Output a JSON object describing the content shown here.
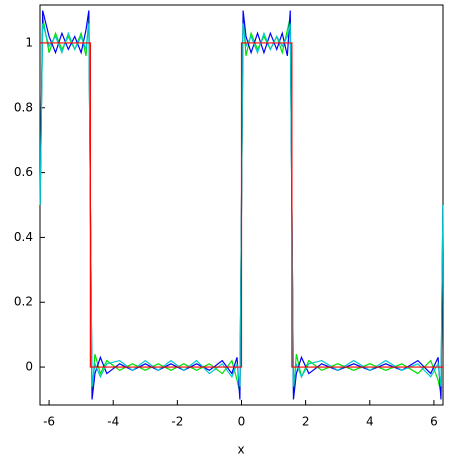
{
  "chart_data": {
    "type": "line",
    "x_label": "x",
    "xlim": [
      -6.2832,
      6.2832
    ],
    "ylim": [
      -0.117,
      1.117
    ],
    "xticks": [
      -6,
      -4,
      -2,
      0,
      2,
      4,
      6
    ],
    "yticks": [
      0,
      0.2,
      0.4,
      0.6,
      0.8,
      1
    ],
    "x": [
      -6.28,
      -6.2,
      -6.0,
      -5.8,
      -5.6,
      -5.4,
      -5.2,
      -5.0,
      -4.85,
      -4.76,
      -4.712,
      -4.66,
      -4.57,
      -4.4,
      -4.2,
      -3.8,
      -3.4,
      -3.0,
      -2.6,
      -2.2,
      -1.8,
      -1.4,
      -1.0,
      -0.6,
      -0.3,
      -0.14,
      -0.05,
      0,
      0.05,
      0.14,
      0.3,
      0.5,
      0.7,
      0.9,
      1.1,
      1.27,
      1.43,
      1.52,
      1.571,
      1.62,
      1.71,
      1.87,
      2.1,
      2.5,
      3.0,
      3.5,
      4.0,
      4.5,
      5.0,
      5.5,
      5.9,
      6.13,
      6.22,
      6.28
    ],
    "series": [
      {
        "color": "#00e000",
        "values": [
          0.5,
          1.08,
          0.97,
          1.03,
          0.98,
          1.02,
          0.98,
          1.03,
          0.96,
          1.08,
          0.5,
          -0.08,
          0.04,
          -0.02,
          0.02,
          -0.01,
          0.01,
          -0.01,
          0.01,
          -0.01,
          0.01,
          -0.01,
          0.01,
          -0.02,
          0.02,
          -0.04,
          -0.08,
          0.5,
          1.08,
          0.96,
          1.03,
          0.98,
          1.02,
          0.98,
          1.02,
          0.97,
          1.04,
          1.08,
          0.5,
          -0.08,
          0.04,
          -0.03,
          0.02,
          -0.01,
          0.01,
          -0.01,
          0.01,
          -0.01,
          0.01,
          -0.02,
          0.02,
          -0.04,
          -0.08,
          0.5
        ]
      },
      {
        "color": "#0000ff",
        "values": [
          0.5,
          1.1,
          1.02,
          0.97,
          1.03,
          0.98,
          1.02,
          0.97,
          1.04,
          1.1,
          0.5,
          -0.1,
          -0.02,
          0.03,
          -0.02,
          0.01,
          -0.01,
          0.01,
          -0.01,
          0.01,
          -0.01,
          0.01,
          -0.01,
          0.02,
          -0.02,
          0.03,
          -0.1,
          0.5,
          1.1,
          1.02,
          0.97,
          1.03,
          0.97,
          1.03,
          0.98,
          1.03,
          0.96,
          1.1,
          0.5,
          -0.1,
          -0.02,
          0.03,
          -0.02,
          0.01,
          -0.01,
          0.01,
          -0.01,
          0.01,
          -0.01,
          0.02,
          -0.02,
          0.03,
          -0.1,
          0.5
        ]
      },
      {
        "color": "#00c8c8",
        "values": [
          0.5,
          1.06,
          0.99,
          1.02,
          0.97,
          1.03,
          0.98,
          1.02,
          0.98,
          1.06,
          0.5,
          -0.06,
          0.01,
          -0.03,
          0.01,
          0.02,
          -0.01,
          0.02,
          -0.01,
          0.02,
          -0.01,
          0.02,
          -0.02,
          0.01,
          -0.03,
          0.01,
          -0.06,
          0.5,
          1.06,
          0.99,
          1.02,
          0.97,
          1.03,
          0.98,
          1.02,
          0.99,
          1.02,
          1.06,
          0.5,
          -0.06,
          0.01,
          -0.03,
          0.01,
          0.02,
          -0.01,
          0.02,
          -0.01,
          0.02,
          -0.01,
          0.01,
          -0.03,
          0.01,
          -0.06,
          0.5
        ]
      },
      {
        "color": "#ff0000",
        "x": [
          -6.2832,
          -4.7124,
          -4.7124,
          0,
          0,
          1.5708,
          1.5708,
          6.2832
        ],
        "values": [
          1,
          1,
          0,
          0,
          1,
          1,
          0,
          0
        ]
      }
    ]
  }
}
